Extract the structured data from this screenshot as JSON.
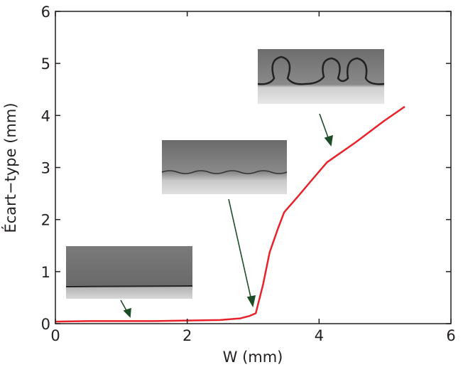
{
  "chart_data": {
    "type": "line",
    "xlabel": "W (mm)",
    "ylabel": "Écart−type (mm)",
    "series": [
      {
        "color": "#e8222a",
        "x": [
          0,
          0.5,
          1,
          1.5,
          2,
          2.5,
          2.8,
          2.95,
          3.04,
          3.15,
          3.25,
          3.38,
          3.47,
          3.69,
          3.87,
          4.12,
          4.55,
          4.98,
          5.3
        ],
        "values": [
          0.04,
          0.05,
          0.05,
          0.05,
          0.06,
          0.07,
          0.1,
          0.15,
          0.2,
          0.75,
          1.37,
          1.84,
          2.14,
          2.46,
          2.73,
          3.1,
          3.48,
          3.89,
          4.17
        ]
      }
    ],
    "xlim": [
      0,
      6
    ],
    "ylim": [
      0,
      6
    ],
    "xticks": [
      0,
      2,
      4,
      6
    ],
    "yticks": [
      0,
      1,
      2,
      3,
      4,
      5,
      6
    ]
  }
}
